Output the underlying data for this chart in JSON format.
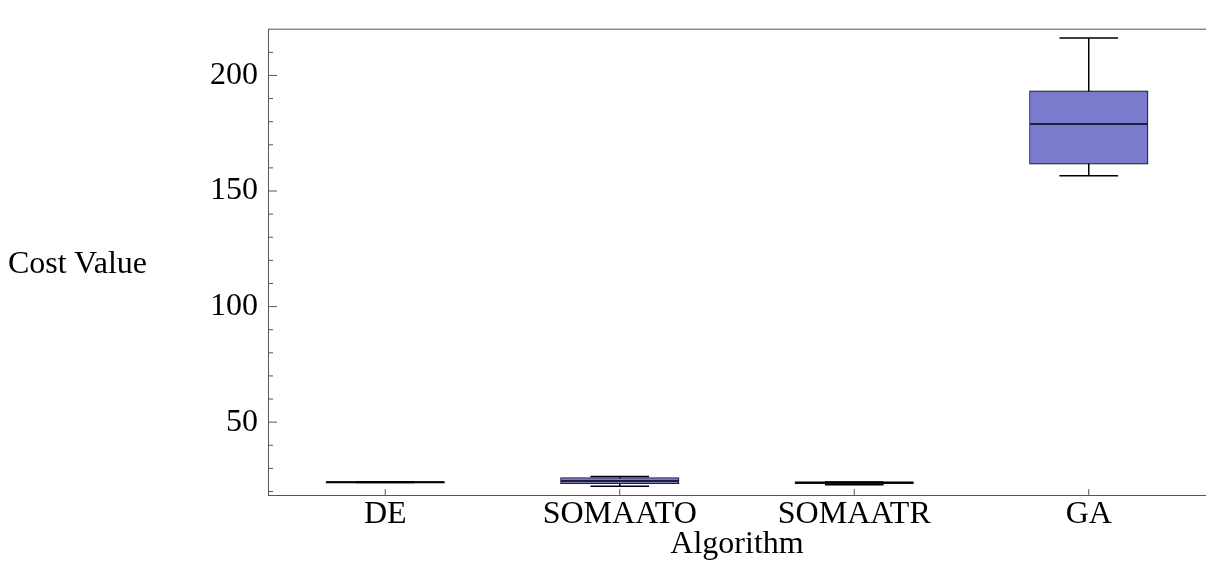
{
  "chart_data": {
    "type": "box",
    "xlabel": "Algorithm",
    "ylabel": "Cost Value",
    "categories": [
      "DE",
      "SOMAATO",
      "SOMAATR",
      "GA"
    ],
    "color": "#7b7bcd",
    "boxes": [
      {
        "low": 23.9,
        "q1": 23.9,
        "median": 24,
        "q3": 24.1,
        "high": 24.2
      },
      {
        "low": 22.3,
        "q1": 23.6,
        "median": 24.5,
        "q3": 25.7,
        "high": 26.5
      },
      {
        "low": 22.9,
        "q1": 23.6,
        "median": 23.8,
        "q3": 24,
        "high": 24.1
      },
      {
        "low": 156.6,
        "q1": 161.9,
        "median": 179,
        "q3": 193.1,
        "high": 216.2
      }
    ],
    "ylim": [
      18.4,
      220
    ],
    "yticks": [
      {
        "value": 20,
        "label": null
      },
      {
        "value": 30,
        "label": null
      },
      {
        "value": 40,
        "label": null
      },
      50,
      {
        "value": 60,
        "label": null
      },
      {
        "value": 70,
        "label": null
      },
      {
        "value": 80,
        "label": null
      },
      {
        "value": 90,
        "label": null
      },
      100,
      {
        "value": 110,
        "label": null
      },
      {
        "value": 120,
        "label": null
      },
      {
        "value": 130,
        "label": null
      },
      {
        "value": 140,
        "label": null
      },
      150,
      {
        "value": 160,
        "label": null
      },
      {
        "value": 170,
        "label": null
      },
      {
        "value": 180,
        "label": null
      },
      {
        "value": 190,
        "label": null
      },
      200,
      {
        "value": 210,
        "label": null
      }
    ],
    "grid": false,
    "legend": false
  }
}
